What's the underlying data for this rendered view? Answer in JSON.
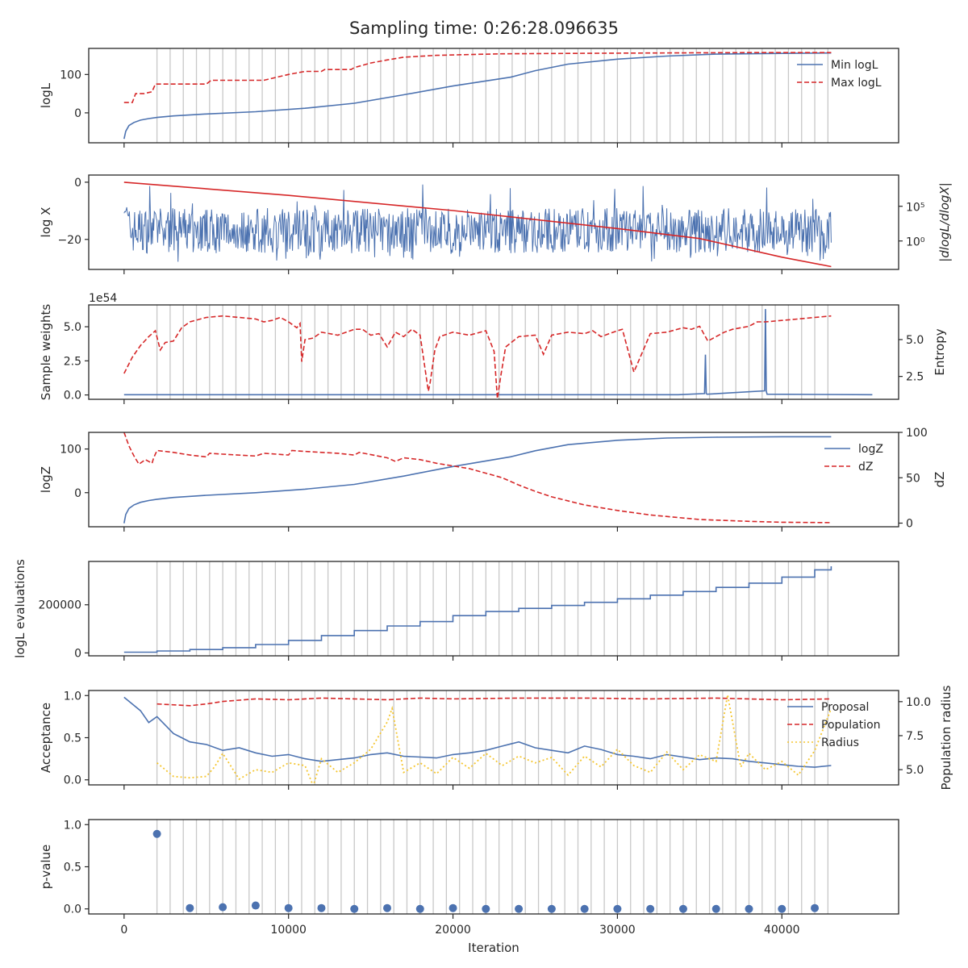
{
  "figure_title": "Sampling time: 0:26:28.096635",
  "colors": {
    "blue": "#4c72b0",
    "red": "#d62728",
    "yellow": "#f5c630",
    "grid_line": "#c8c8c8",
    "axis": "#262626"
  },
  "chart_data": [
    {
      "id": "logL",
      "type": "line",
      "ylabel": "logL",
      "xlim": [
        -2150,
        47100
      ],
      "ylim": [
        -78,
        168
      ],
      "yticks": [
        0,
        100
      ],
      "yticklabels": [
        "0",
        "100"
      ],
      "legend": {
        "location": "top-right",
        "entries": [
          "Min logL",
          "Max logL"
        ]
      },
      "series": [
        {
          "name": "Min logL",
          "style": "solid",
          "color": "blue",
          "x": [
            0,
            100,
            300,
            600,
            1000,
            1500,
            2000,
            3000,
            5000,
            8000,
            11000,
            14000,
            17000,
            20000,
            23500,
            25000,
            27000,
            30000,
            33000,
            36000,
            40000,
            43000
          ],
          "y": [
            -68,
            -48,
            -33,
            -25,
            -19,
            -15,
            -12,
            -8,
            -3,
            3,
            12,
            25,
            47,
            70,
            93,
            110,
            127,
            140,
            148,
            153,
            155,
            156
          ]
        },
        {
          "name": "Max logL",
          "style": "dashed",
          "color": "red",
          "x": [
            0,
            500,
            700,
            1200,
            1700,
            1900,
            5000,
            5300,
            8500,
            9000,
            10000,
            11000,
            12000,
            12200,
            13800,
            14000,
            15000,
            16000,
            17000,
            19000,
            21000,
            23000,
            27000,
            32000,
            38000,
            43000
          ],
          "y": [
            27,
            27,
            50,
            50,
            55,
            75,
            75,
            85,
            85,
            90,
            100,
            108,
            108,
            113,
            113,
            118,
            130,
            138,
            145,
            150,
            152,
            154,
            155,
            156,
            157,
            157
          ]
        }
      ]
    },
    {
      "id": "logX",
      "type": "line",
      "ylabel": "log X",
      "ylabel_right": "|dlogL/dlogX|",
      "ylim": [
        -30.5,
        2.5
      ],
      "yticks": [
        0,
        -20
      ],
      "yticklabels": [
        "0",
        "−20"
      ],
      "right_scale": "log",
      "right_yticks_log10": [
        5,
        0
      ],
      "right_yticklabels": [
        "10⁵",
        "10⁰"
      ],
      "right_ylim_log10": [
        -4.1,
        9.5
      ],
      "series": [
        {
          "name": "",
          "style": "solid",
          "color": "red",
          "axis": "left",
          "x": [
            0,
            10000,
            20000,
            30000,
            35000,
            40000,
            43000
          ],
          "y": [
            0,
            -4.6,
            -9.9,
            -16.2,
            -19.7,
            -26.2,
            -29.5
          ]
        },
        {
          "name": "",
          "style": "noise",
          "color": "blue",
          "axis": "right",
          "note": "dense noisy trace, mostly between 10^-2 and 10^5, with spikes up to ~10^8"
        }
      ]
    },
    {
      "id": "weights",
      "type": "line",
      "ylabel": "Sample weights",
      "ylabel_right": "Entropy",
      "offset_text": "1e54",
      "ylim": [
        -0.32,
        6.6
      ],
      "yticks": [
        0.0,
        2.5,
        5.0
      ],
      "yticklabels": [
        "0.0",
        "2.5",
        "5.0"
      ],
      "right_ylim": [
        0.95,
        7.35
      ],
      "right_yticks": [
        2.5,
        5.0
      ],
      "right_yticklabels": [
        "2.5",
        "5.0"
      ],
      "series": [
        {
          "name": "",
          "style": "solid",
          "color": "blue",
          "axis": "left",
          "x": [
            0,
            33700,
            35300,
            35350,
            35400,
            35450,
            38950,
            39000,
            39050,
            39100,
            45500
          ],
          "y": [
            0.02,
            0.02,
            0.1,
            2.95,
            0.1,
            0.05,
            0.3,
            6.3,
            0.3,
            0.05,
            0.02
          ]
        },
        {
          "name": "",
          "style": "dashed",
          "color": "red",
          "axis": "right",
          "x": [
            0,
            500,
            1000,
            1500,
            1900,
            2200,
            2500,
            3000,
            3500,
            4000,
            5000,
            6000,
            7000,
            8000,
            8500,
            9000,
            9500,
            10000,
            10500,
            10700,
            10800,
            11000,
            11500,
            12000,
            13000,
            14000,
            14500,
            15000,
            15500,
            16000,
            16500,
            17000,
            17500,
            18000,
            18500,
            18600,
            18900,
            19200,
            20000,
            21000,
            22000,
            22500,
            22700,
            22900,
            23200,
            24000,
            25000,
            25500,
            26000,
            27000,
            28000,
            28500,
            29000,
            30000,
            30300,
            31000,
            32000,
            33000,
            34000,
            34500,
            35000,
            35500,
            36500,
            37000,
            38000,
            38500,
            39000,
            40000,
            41000,
            42000,
            43000
          ],
          "y": [
            2.7,
            3.8,
            4.6,
            5.2,
            5.6,
            4.3,
            4.8,
            4.9,
            5.8,
            6.2,
            6.5,
            6.6,
            6.5,
            6.4,
            6.2,
            6.3,
            6.5,
            6.2,
            5.8,
            6.1,
            3.5,
            5.0,
            5.1,
            5.5,
            5.3,
            5.7,
            5.7,
            5.3,
            5.4,
            4.5,
            5.5,
            5.2,
            5.7,
            5.3,
            1.5,
            2.0,
            4.3,
            5.2,
            5.5,
            5.3,
            5.6,
            4.2,
            1.0,
            2.5,
            4.5,
            5.2,
            5.3,
            4.0,
            5.3,
            5.5,
            5.4,
            5.6,
            5.2,
            5.6,
            5.7,
            2.8,
            5.4,
            5.5,
            5.8,
            5.7,
            5.9,
            4.9,
            5.5,
            5.7,
            5.9,
            6.2,
            6.2,
            6.3,
            6.4,
            6.5,
            6.6
          ]
        }
      ]
    },
    {
      "id": "logZ",
      "type": "line",
      "ylabel": "logZ",
      "ylabel_right": "dZ",
      "ylim": [
        -78,
        138
      ],
      "yticks": [
        0,
        100
      ],
      "yticklabels": [
        "0",
        "100"
      ],
      "right_ylim": [
        -4,
        100
      ],
      "right_yticks": [
        0,
        50,
        100
      ],
      "right_yticklabels": [
        "0",
        "50",
        "100"
      ],
      "legend": {
        "location": "top-right",
        "entries": [
          "logZ",
          "dZ"
        ]
      },
      "series": [
        {
          "name": "logZ",
          "style": "solid",
          "color": "blue",
          "axis": "left",
          "x": [
            0,
            100,
            300,
            600,
            1000,
            1500,
            2000,
            3000,
            5000,
            8000,
            11000,
            14000,
            17000,
            20000,
            23500,
            25000,
            27000,
            30000,
            33000,
            36000,
            40000,
            43000
          ],
          "y": [
            -70,
            -50,
            -36,
            -28,
            -22,
            -18,
            -15,
            -11,
            -6,
            0,
            8,
            19,
            38,
            60,
            82,
            96,
            110,
            120,
            125,
            127,
            128,
            128
          ]
        },
        {
          "name": "dZ",
          "style": "dashed",
          "color": "red",
          "axis": "right",
          "x": [
            0,
            300,
            600,
            900,
            1300,
            1700,
            1800,
            2000,
            3000,
            4000,
            5000,
            5200,
            6000,
            8000,
            8500,
            10000,
            10200,
            11000,
            12000,
            13000,
            14000,
            14300,
            16000,
            16500,
            17000,
            18000,
            19000,
            20000,
            21000,
            22000,
            23000,
            24000,
            25000,
            26000,
            28000,
            30000,
            32000,
            35000,
            38000,
            40000,
            43000
          ],
          "y": [
            100,
            85,
            74,
            65,
            70,
            66,
            72,
            80,
            78,
            75,
            73,
            77,
            76,
            74,
            77,
            75,
            80,
            79,
            78,
            77,
            75,
            78,
            72,
            68,
            72,
            70,
            66,
            63,
            60,
            55,
            50,
            42,
            35,
            29,
            20,
            14,
            9,
            4,
            2,
            1,
            0.5
          ]
        }
      ]
    },
    {
      "id": "evaluations",
      "type": "line",
      "ylabel": "logL evaluations",
      "ylim": [
        -12000,
        380000
      ],
      "yticks": [
        0,
        200000
      ],
      "yticklabels": [
        "0",
        "200000"
      ],
      "series": [
        {
          "name": "",
          "style": "step",
          "color": "blue",
          "x": [
            0,
            2000,
            4000,
            6000,
            8000,
            10000,
            12000,
            14000,
            16000,
            18000,
            20000,
            22000,
            24000,
            26000,
            28000,
            30000,
            32000,
            34000,
            36000,
            38000,
            40000,
            42000,
            43000
          ],
          "y": [
            3000,
            8000,
            14000,
            22000,
            35000,
            52000,
            72000,
            93000,
            112000,
            130000,
            155000,
            172000,
            185000,
            197000,
            210000,
            225000,
            240000,
            255000,
            272000,
            290000,
            315000,
            345000,
            360000
          ]
        }
      ]
    },
    {
      "id": "acceptance",
      "type": "line",
      "ylabel": "Acceptance",
      "ylabel_right": "Population radius",
      "ylim": [
        -0.06,
        1.06
      ],
      "yticks": [
        0.0,
        0.5,
        1.0
      ],
      "yticklabels": [
        "0.0",
        "0.5",
        "1.0"
      ],
      "right_ylim": [
        3.88,
        10.82
      ],
      "right_yticks": [
        5.0,
        7.5,
        10.0
      ],
      "right_yticklabels": [
        "5.0",
        "7.5",
        "10.0"
      ],
      "legend": {
        "location": "top-right",
        "entries": [
          "Proposal",
          "Population",
          "Radius"
        ]
      },
      "series": [
        {
          "name": "Proposal",
          "style": "solid",
          "color": "blue",
          "axis": "left",
          "x": [
            0,
            500,
            1000,
            1500,
            2000,
            2500,
            3000,
            3500,
            4000,
            5000,
            6000,
            7000,
            8000,
            9000,
            10000,
            11000,
            12000,
            13000,
            14000,
            15000,
            16000,
            17000,
            18000,
            19000,
            20000,
            21000,
            22000,
            23000,
            24000,
            25000,
            26000,
            27000,
            28000,
            29000,
            30000,
            31000,
            32000,
            33000,
            34000,
            35000,
            36000,
            37000,
            38000,
            39000,
            40000,
            41000,
            42000,
            43000
          ],
          "y": [
            0.98,
            0.9,
            0.82,
            0.68,
            0.75,
            0.65,
            0.55,
            0.5,
            0.45,
            0.42,
            0.35,
            0.38,
            0.32,
            0.28,
            0.3,
            0.25,
            0.22,
            0.24,
            0.26,
            0.3,
            0.32,
            0.28,
            0.27,
            0.26,
            0.3,
            0.32,
            0.35,
            0.4,
            0.45,
            0.38,
            0.35,
            0.32,
            0.4,
            0.36,
            0.3,
            0.28,
            0.25,
            0.3,
            0.27,
            0.24,
            0.26,
            0.25,
            0.22,
            0.2,
            0.18,
            0.16,
            0.15,
            0.17
          ]
        },
        {
          "name": "Population",
          "style": "dashed",
          "color": "red",
          "axis": "left",
          "x": [
            2000,
            4000,
            5000,
            6000,
            8000,
            10000,
            12000,
            14000,
            16000,
            18000,
            20000,
            24000,
            28000,
            32000,
            36000,
            40000,
            43000
          ],
          "y": [
            0.9,
            0.88,
            0.9,
            0.93,
            0.96,
            0.95,
            0.97,
            0.96,
            0.95,
            0.97,
            0.96,
            0.97,
            0.97,
            0.96,
            0.97,
            0.95,
            0.96
          ]
        },
        {
          "name": "Radius",
          "style": "dotted",
          "color": "yellow",
          "axis": "right",
          "x": [
            2000,
            3000,
            4000,
            5000,
            5500,
            6000,
            7000,
            8000,
            9000,
            10000,
            11000,
            11500,
            12000,
            13000,
            14000,
            15000,
            16000,
            16300,
            17000,
            18000,
            19000,
            20000,
            21000,
            22000,
            23000,
            24000,
            25000,
            26000,
            27000,
            28000,
            29000,
            30000,
            31000,
            32000,
            33000,
            34000,
            35000,
            36000,
            36700,
            37500,
            38000,
            39000,
            40000,
            41000,
            42000,
            43000
          ],
          "y": [
            5.5,
            4.5,
            4.4,
            4.5,
            5.2,
            6.2,
            4.3,
            5.0,
            4.8,
            5.5,
            5.3,
            3.8,
            5.8,
            4.8,
            5.5,
            6.5,
            8.5,
            9.5,
            4.8,
            5.5,
            4.7,
            5.9,
            5.1,
            6.2,
            5.3,
            6.0,
            5.5,
            5.9,
            4.6,
            6.0,
            5.2,
            6.5,
            5.3,
            4.8,
            6.3,
            5.0,
            6.1,
            5.6,
            10.5,
            5.2,
            6.2,
            5.0,
            5.6,
            4.6,
            6.4,
            9.5
          ]
        }
      ]
    },
    {
      "id": "pvalue",
      "type": "scatter",
      "ylabel": "p-value",
      "xlabel": "Iteration",
      "ylim": [
        -0.06,
        1.06
      ],
      "yticks": [
        0.0,
        0.5,
        1.0
      ],
      "yticklabels": [
        "0.0",
        "0.5",
        "1.0"
      ],
      "xticks": [
        0,
        10000,
        20000,
        30000,
        40000
      ],
      "xticklabels": [
        "0",
        "10000",
        "20000",
        "30000",
        "40000"
      ],
      "series": [
        {
          "name": "",
          "style": "marker",
          "color": "blue",
          "x": [
            2000,
            4000,
            6000,
            8000,
            10000,
            12000,
            14000,
            16000,
            18000,
            20000,
            22000,
            24000,
            26000,
            28000,
            30000,
            32000,
            34000,
            36000,
            38000,
            40000,
            42000
          ],
          "y": [
            0.89,
            0.01,
            0.02,
            0.04,
            0.01,
            0.01,
            0.0,
            0.01,
            0.0,
            0.01,
            0.0,
            0.0,
            0.0,
            0.0,
            0.0,
            0.0,
            0.0,
            0.0,
            0.0,
            0.0,
            0.01
          ]
        }
      ]
    }
  ]
}
